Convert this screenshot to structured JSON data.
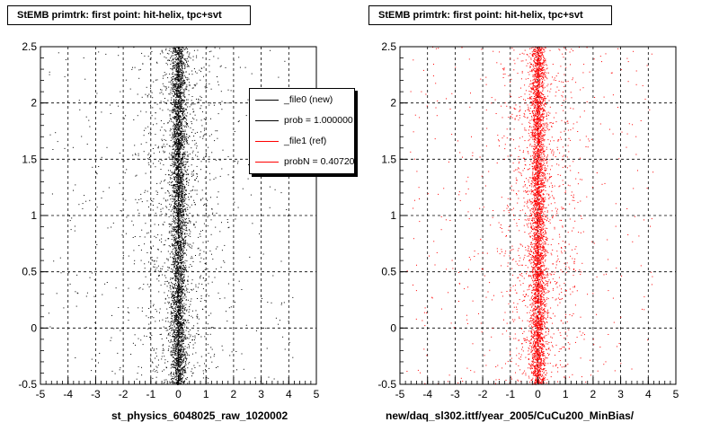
{
  "chart_data": [
    {
      "type": "scatter",
      "title": "StEMB primtrk: first point: hit-helix, tpc+svt",
      "xlabel": "st_physics_6048025_raw_1020002",
      "ylabel": "",
      "xlim": [
        -5,
        5
      ],
      "ylim": [
        -0.5,
        2.5
      ],
      "x_ticks": [
        "-5",
        "-4",
        "-3",
        "-2",
        "-1",
        "0",
        "1",
        "2",
        "3",
        "4",
        "5"
      ],
      "y_ticks": [
        "-0.5",
        "0",
        "0.5",
        "1",
        "1.5",
        "2",
        "2.5"
      ],
      "grid": true,
      "series": [
        {
          "name": "_file0 (new)",
          "color": "#000000",
          "distribution": {
            "x_center": 0.0,
            "x_core_width": 0.25,
            "x_spread": 1.5,
            "y_range": [
              -0.5,
              2.5
            ]
          }
        }
      ],
      "legend": {
        "placement": "top-right",
        "entries": [
          {
            "label": "_file0 (new)",
            "color": "#000000"
          },
          {
            "label": "prob = 1.000000",
            "color": "#000000"
          },
          {
            "label": "_file1 (ref)",
            "color": "#ff0000"
          },
          {
            "label": "probN = 0.407200",
            "color": "#ff0000"
          }
        ]
      }
    },
    {
      "type": "scatter",
      "title": "StEMB primtrk: first point: hit-helix, tpc+svt",
      "xlabel": "new/daq_sl302.ittf/year_2005/CuCu200_MinBias/",
      "ylabel": "",
      "xlim": [
        -5,
        5
      ],
      "ylim": [
        -0.5,
        2.5
      ],
      "x_ticks": [
        "-5",
        "-4",
        "-3",
        "-2",
        "-1",
        "0",
        "1",
        "2",
        "3",
        "4",
        "5"
      ],
      "y_ticks": [
        "-0.5",
        "0",
        "0.5",
        "1",
        "1.5",
        "2",
        "2.5"
      ],
      "grid": true,
      "series": [
        {
          "name": "_file1 (ref)",
          "color": "#ff0000",
          "distribution": {
            "x_center": 0.0,
            "x_core_width": 0.25,
            "x_spread": 1.5,
            "y_range": [
              -0.5,
              2.5
            ]
          }
        }
      ]
    }
  ]
}
